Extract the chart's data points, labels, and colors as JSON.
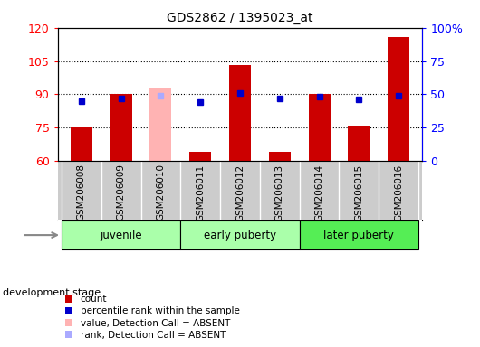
{
  "title": "GDS2862 / 1395023_at",
  "samples": [
    "GSM206008",
    "GSM206009",
    "GSM206010",
    "GSM206011",
    "GSM206012",
    "GSM206013",
    "GSM206014",
    "GSM206015",
    "GSM206016"
  ],
  "bar_values": [
    75,
    90,
    93,
    64,
    103,
    64,
    90,
    76,
    116
  ],
  "bar_colors": [
    "#cc0000",
    "#cc0000",
    "#ffb3b3",
    "#cc0000",
    "#cc0000",
    "#cc0000",
    "#cc0000",
    "#cc0000",
    "#cc0000"
  ],
  "rank_values": [
    45,
    47,
    49,
    44,
    51,
    47,
    48,
    46,
    49
  ],
  "rank_colors": [
    "#0000cc",
    "#0000cc",
    "#aaaaff",
    "#0000cc",
    "#0000cc",
    "#0000cc",
    "#0000cc",
    "#0000cc",
    "#0000cc"
  ],
  "absent_idx": 2,
  "ylim_left": [
    60,
    120
  ],
  "ylim_right": [
    0,
    100
  ],
  "yticks_left": [
    60,
    75,
    90,
    105,
    120
  ],
  "yticks_right": [
    0,
    25,
    50,
    75,
    100
  ],
  "stage_groups": [
    {
      "label": "juvenile",
      "start": 0,
      "end": 2,
      "color": "#aaffaa"
    },
    {
      "label": "early puberty",
      "start": 3,
      "end": 5,
      "color": "#aaffaa"
    },
    {
      "label": "later puberty",
      "start": 6,
      "end": 8,
      "color": "#55ee55"
    }
  ],
  "legend_items": [
    {
      "label": "count",
      "color": "#cc0000"
    },
    {
      "label": "percentile rank within the sample",
      "color": "#0000cc"
    },
    {
      "label": "value, Detection Call = ABSENT",
      "color": "#ffb3b3"
    },
    {
      "label": "rank, Detection Call = ABSENT",
      "color": "#aaaaff"
    }
  ],
  "stage_label": "development stage",
  "plot_bg_color": "#ffffff",
  "tick_bg_color": "#cccccc",
  "bar_width": 0.55
}
